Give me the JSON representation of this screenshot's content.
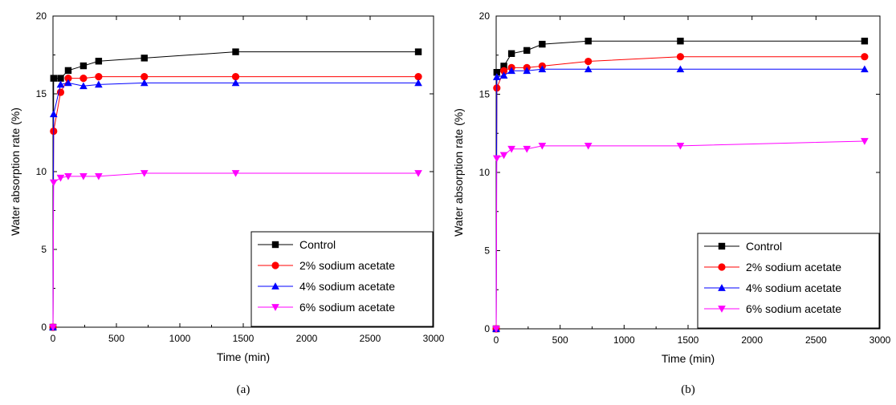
{
  "chart_data": [
    {
      "type": "line",
      "panel_label": "a",
      "xlabel": "Time (min)",
      "ylabel": "Water absorption rate (%)",
      "xlim": [
        0,
        3000
      ],
      "ylim": [
        0,
        20
      ],
      "xticks": [
        0,
        500,
        1000,
        1500,
        2000,
        2500,
        3000
      ],
      "yticks": [
        0,
        5,
        10,
        15,
        20
      ],
      "grid": false,
      "legend_position": "bottom-right",
      "series": [
        {
          "name": "Control",
          "color": "#000000",
          "marker": "square",
          "x": [
            0,
            5,
            60,
            120,
            240,
            360,
            720,
            1440,
            2880
          ],
          "y": [
            0,
            16.0,
            16.0,
            16.5,
            16.8,
            17.1,
            17.3,
            17.7,
            17.7
          ]
        },
        {
          "name": "2% sodium acetate",
          "color": "#ff0000",
          "marker": "circle",
          "x": [
            0,
            5,
            60,
            120,
            240,
            360,
            720,
            1440,
            2880
          ],
          "y": [
            0,
            12.6,
            15.1,
            16.0,
            16.0,
            16.1,
            16.1,
            16.1,
            16.1
          ]
        },
        {
          "name": "4% sodium acetate",
          "color": "#0000ff",
          "marker": "triangle-up",
          "x": [
            0,
            5,
            60,
            120,
            240,
            360,
            720,
            1440,
            2880
          ],
          "y": [
            0,
            13.7,
            15.6,
            15.7,
            15.5,
            15.6,
            15.7,
            15.7,
            15.7
          ]
        },
        {
          "name": "6% sodium acetate",
          "color": "#ff00ff",
          "marker": "triangle-down",
          "x": [
            0,
            5,
            60,
            120,
            240,
            360,
            720,
            1440,
            2880
          ],
          "y": [
            0,
            9.3,
            9.6,
            9.7,
            9.7,
            9.7,
            9.9,
            9.9,
            9.9
          ]
        }
      ]
    },
    {
      "type": "line",
      "panel_label": "b",
      "xlabel": "Time (min)",
      "ylabel": "Water absorption rate (%)",
      "xlim": [
        0,
        3000
      ],
      "ylim": [
        0,
        20
      ],
      "xticks": [
        0,
        500,
        1000,
        1500,
        2000,
        2500,
        3000
      ],
      "yticks": [
        0,
        5,
        10,
        15,
        20
      ],
      "grid": false,
      "legend_position": "bottom-right",
      "series": [
        {
          "name": "Control",
          "color": "#000000",
          "marker": "square",
          "x": [
            0,
            5,
            60,
            120,
            240,
            360,
            720,
            1440,
            2880
          ],
          "y": [
            0,
            16.4,
            16.8,
            17.6,
            17.8,
            18.2,
            18.4,
            18.4,
            18.4
          ]
        },
        {
          "name": "2% sodium acetate",
          "color": "#ff0000",
          "marker": "circle",
          "x": [
            0,
            5,
            60,
            120,
            240,
            360,
            720,
            1440,
            2880
          ],
          "y": [
            0,
            15.4,
            16.5,
            16.7,
            16.7,
            16.8,
            17.1,
            17.4,
            17.4
          ]
        },
        {
          "name": "4% sodium acetate",
          "color": "#0000ff",
          "marker": "triangle-up",
          "x": [
            0,
            5,
            60,
            120,
            240,
            360,
            720,
            1440,
            2880
          ],
          "y": [
            0,
            16.1,
            16.2,
            16.5,
            16.5,
            16.6,
            16.6,
            16.6,
            16.6
          ]
        },
        {
          "name": "6% sodium acetate",
          "color": "#ff00ff",
          "marker": "triangle-down",
          "x": [
            0,
            5,
            60,
            120,
            240,
            360,
            720,
            1440,
            2880
          ],
          "y": [
            0,
            10.9,
            11.1,
            11.5,
            11.5,
            11.7,
            11.7,
            11.7,
            12.0
          ]
        }
      ]
    }
  ],
  "captions": [
    "(a)",
    "(b)"
  ]
}
